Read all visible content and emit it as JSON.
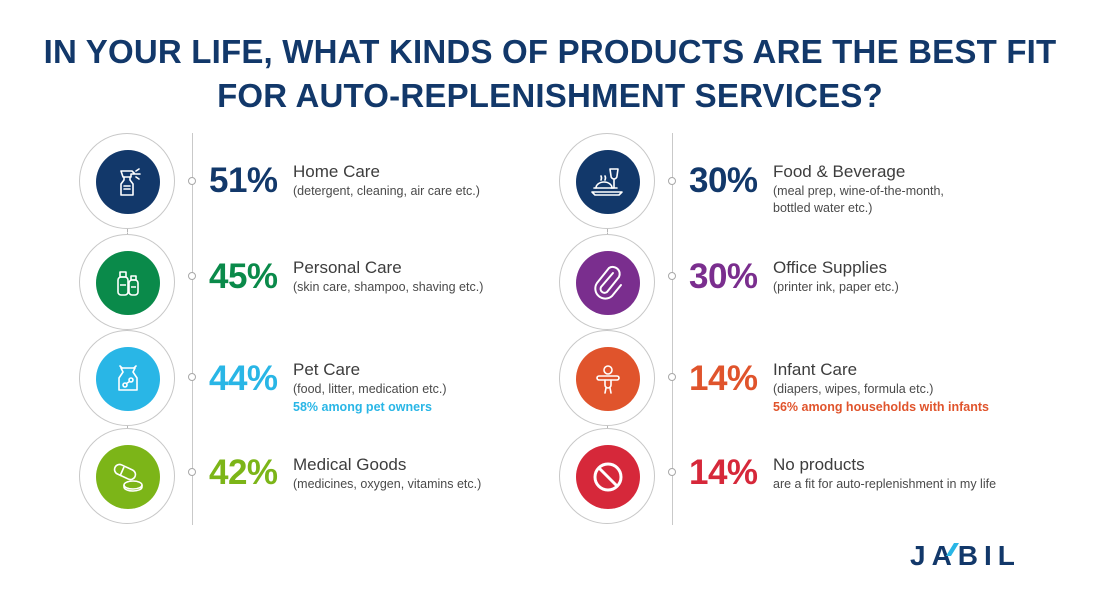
{
  "title": {
    "line1": "IN YOUR LIFE, WHAT KINDS OF PRODUCTS ARE THE BEST FIT",
    "line2": "FOR AUTO-REPLENISHMENT SERVICES?"
  },
  "chart_data": {
    "type": "table",
    "title": "IN YOUR LIFE, WHAT KINDS OF PRODUCTS ARE THE BEST FIT FOR AUTO-REPLENISHMENT SERVICES?",
    "items": [
      {
        "percent": "51%",
        "value": 51,
        "label": "Home Care",
        "sub": "(detergent, cleaning, air care etc.)",
        "note": "",
        "color": "#12386a",
        "icon": "spray-bottle-icon"
      },
      {
        "percent": "45%",
        "value": 45,
        "label": "Personal Care",
        "sub": "(skin care, shampoo, shaving etc.)",
        "note": "",
        "color": "#0a8a4a",
        "icon": "lotion-bottles-icon"
      },
      {
        "percent": "44%",
        "value": 44,
        "label": "Pet Care",
        "sub": "(food, litter, medication etc.)",
        "note": "58% among pet owners",
        "color": "#29b6e6",
        "icon": "pet-food-bag-icon"
      },
      {
        "percent": "42%",
        "value": 42,
        "label": "Medical Goods",
        "sub": "(medicines, oxygen, vitamins etc.)",
        "note": "",
        "color": "#7cb518",
        "icon": "pills-icon"
      },
      {
        "percent": "30%",
        "value": 30,
        "label": "Food & Beverage",
        "sub": "(meal prep, wine-of-the-month, bottled water etc.)",
        "note": "",
        "color": "#12386a",
        "icon": "meal-wine-icon"
      },
      {
        "percent": "30%",
        "value": 30,
        "label": "Office Supplies",
        "sub": "(printer ink, paper etc.)",
        "note": "",
        "color": "#7a2e8e",
        "icon": "paperclip-icon"
      },
      {
        "percent": "14%",
        "value": 14,
        "label": "Infant Care",
        "sub": "(diapers, wipes, formula etc.)",
        "note": "56% among households with infants",
        "color": "#e0542c",
        "icon": "pacifier-icon"
      },
      {
        "percent": "14%",
        "value": 14,
        "label": "No products",
        "sub": "are a fit for auto-replenishment in my life",
        "note": "",
        "color": "#d6283a",
        "icon": "no-symbol-icon"
      }
    ]
  },
  "logo": {
    "text": "JABIL",
    "color": "#12386a",
    "accent": "#29b6e6"
  }
}
